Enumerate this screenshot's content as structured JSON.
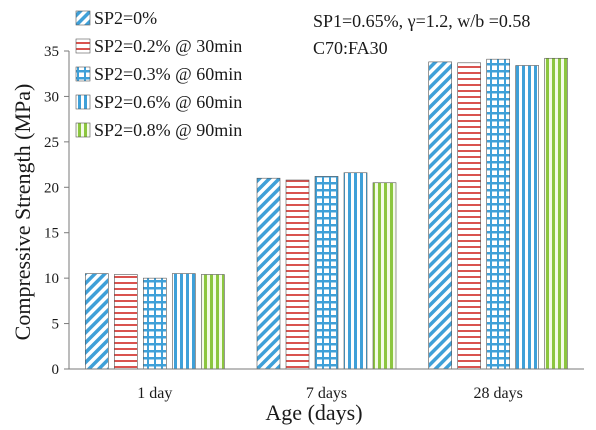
{
  "chart_data": {
    "type": "bar",
    "categories": [
      "1 day",
      "7 days",
      "28 days"
    ],
    "series": [
      {
        "name": "SP2=0%",
        "values": [
          10.5,
          21.0,
          33.8
        ]
      },
      {
        "name": "SP2=0.2% @ 30min",
        "values": [
          10.4,
          20.8,
          33.7
        ]
      },
      {
        "name": "SP2=0.3% @ 60min",
        "values": [
          10.0,
          21.2,
          34.1
        ]
      },
      {
        "name": "SP2=0.6%  @ 60min",
        "values": [
          10.5,
          21.6,
          33.4
        ]
      },
      {
        "name": "SP2=0.8% @ 90min",
        "values": [
          10.4,
          20.5,
          34.2
        ]
      }
    ],
    "xlabel": "Age (days)",
    "ylabel": "Compressive Strength (MPa)",
    "ylim": [
      0,
      35
    ],
    "yticks": [
      0,
      5,
      10,
      15,
      20,
      25,
      30,
      35
    ],
    "grid": false,
    "legend_position": "top-left",
    "annotations": [
      "SP1=0.65%, γ=1.2, w/b =0.58",
      "C70:FA30"
    ],
    "colors": {
      "blue": "#3fa0d8",
      "red": "#d9534f",
      "green": "#8cc63f",
      "outline": "#555555"
    },
    "patterns": [
      "diagonal",
      "brick",
      "grid",
      "vertical",
      "vertical"
    ]
  }
}
